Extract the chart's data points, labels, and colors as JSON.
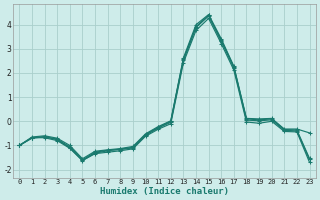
{
  "xlabel": "Humidex (Indice chaleur)",
  "background_color": "#ceecea",
  "grid_color": "#aacfcc",
  "line_color": "#1a7a6e",
  "xlim_min": -0.5,
  "xlim_max": 23.5,
  "ylim_min": -2.35,
  "ylim_max": 4.85,
  "xticks": [
    0,
    1,
    2,
    3,
    4,
    5,
    6,
    7,
    8,
    9,
    10,
    11,
    12,
    13,
    14,
    15,
    16,
    17,
    18,
    19,
    20,
    21,
    22,
    23
  ],
  "yticks": [
    -2,
    -1,
    0,
    1,
    2,
    3,
    4
  ],
  "series": [
    [
      -1.0,
      -0.68,
      -0.68,
      -0.8,
      -1.12,
      -1.63,
      -1.32,
      -1.22,
      -1.15,
      -1.08,
      -0.55,
      -0.25,
      0.0,
      2.62,
      4.0,
      4.42,
      3.42,
      2.28,
      0.12,
      0.1,
      0.12,
      -0.32,
      -0.32,
      -0.48
    ],
    [
      -1.0,
      -0.68,
      -0.64,
      -0.74,
      -1.06,
      -1.6,
      -1.28,
      -1.2,
      -1.17,
      -1.1,
      -0.58,
      -0.28,
      -0.04,
      2.52,
      3.88,
      4.36,
      3.32,
      2.22,
      0.05,
      0.02,
      0.06,
      -0.37,
      -0.4,
      -1.58
    ],
    [
      -1.0,
      -0.7,
      -0.64,
      -0.76,
      -1.1,
      -1.62,
      -1.34,
      -1.28,
      -1.22,
      -1.14,
      -0.62,
      -0.33,
      -0.1,
      2.42,
      3.76,
      4.26,
      3.22,
      2.12,
      -0.03,
      -0.08,
      0.0,
      -0.42,
      -0.44,
      -1.7
    ],
    [
      -1.0,
      -0.65,
      -0.6,
      -0.7,
      -1.0,
      -1.55,
      -1.24,
      -1.18,
      -1.13,
      -1.04,
      -0.52,
      -0.22,
      0.02,
      2.56,
      3.92,
      4.39,
      3.36,
      2.26,
      0.1,
      0.06,
      0.1,
      -0.34,
      -0.36,
      -1.54
    ]
  ]
}
